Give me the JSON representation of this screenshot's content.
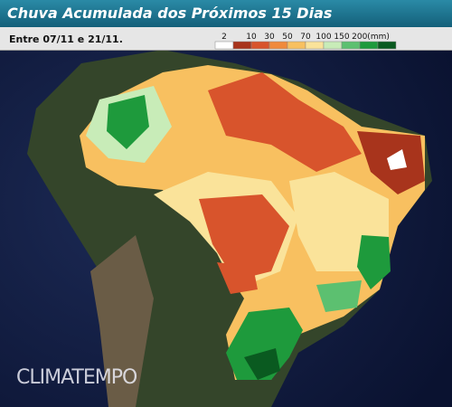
{
  "header": {
    "title": "Chuva Acumulada dos Próximos 15 Dias",
    "subtitle": "Entre 07/11 e 21/11."
  },
  "legend": {
    "colors": [
      "#ffffff",
      "#a8341c",
      "#d8542c",
      "#f08a3c",
      "#f8c060",
      "#fae39a",
      "#c8ecb8",
      "#5cc070",
      "#1e9a3c",
      "#0a5a20"
    ],
    "labels": [
      "2",
      "10",
      "30",
      "50",
      "70",
      "100",
      "150",
      "200(mm)"
    ]
  },
  "watermark": "CLIMATEMPO"
}
